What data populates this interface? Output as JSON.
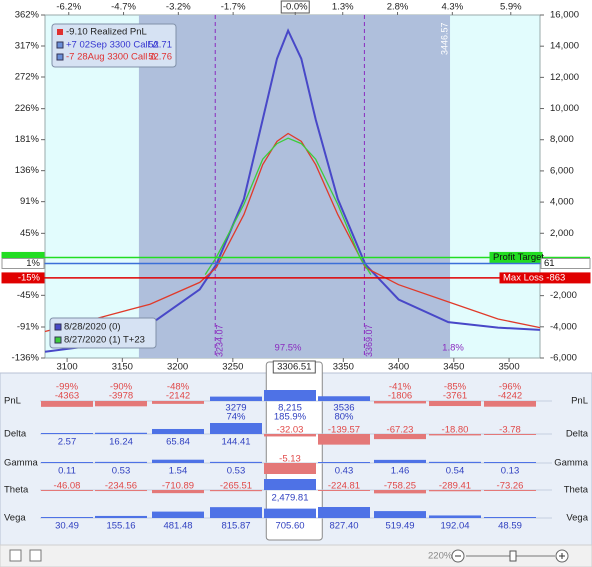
{
  "chart_data": {
    "type": "line",
    "realized": "-9.10 Realized PnL",
    "positions": [
      {
        "label": "+7 02Sep 3300 Call Δ",
        "delta": 52.71,
        "color": "#3535d0"
      },
      {
        "label": "-7 28Aug 3300 Call Δ",
        "delta": 52.76,
        "color": "#e03030"
      }
    ],
    "series": [
      {
        "name": "8/28/2020 (0)",
        "color": "#4848c8",
        "x": [
          3080,
          3130,
          3175,
          3220,
          3235,
          3260,
          3277,
          3290,
          3300,
          3312,
          3325,
          3345,
          3370,
          3400,
          3445,
          3490,
          3528
        ],
        "values": [
          -5600,
          -5150,
          -3850,
          -1600,
          0,
          4200,
          9300,
          13200,
          15000,
          13200,
          9300,
          4200,
          0,
          -2250,
          -3700,
          -4050,
          -4200
        ]
      },
      {
        "color": "#e03a2a",
        "x": [
          3080,
          3130,
          3175,
          3220,
          3235,
          3260,
          3277,
          3290,
          3300,
          3312,
          3325,
          3345,
          3370,
          3400,
          3445,
          3490,
          3528
        ],
        "values": [
          -4300,
          -3400,
          -2550,
          -1150,
          -200,
          3200,
          6400,
          7900,
          8400,
          7900,
          6400,
          3200,
          -200,
          -1300,
          -2400,
          -3500,
          -4050
        ]
      },
      {
        "name": "8/27/2020 (1) T+23",
        "color": "#3ccc3c",
        "x": [
          3225,
          3235,
          3260,
          3277,
          3290,
          3300,
          3312,
          3325,
          3345,
          3365,
          3375
        ],
        "values": [
          -650,
          450,
          3850,
          6750,
          7750,
          8100,
          7750,
          6750,
          3850,
          450,
          -650
        ]
      }
    ],
    "xlim": [
      3080,
      3528
    ],
    "xticks": [
      3100,
      3150,
      3200,
      3250,
      3350,
      3400,
      3450,
      3500
    ],
    "x2lim": [
      -6.85,
      6.7
    ],
    "x2ticks": [
      {
        "value": -6.2,
        "label": "-6.2%"
      },
      {
        "value": -4.7,
        "label": "-4.7%"
      },
      {
        "value": -3.2,
        "label": "-3.2%"
      },
      {
        "value": -1.7,
        "label": "-1.7%"
      },
      {
        "value": 0,
        "label": "-0.0%"
      },
      {
        "value": 1.3,
        "label": "1.3%"
      },
      {
        "value": 2.8,
        "label": "2.8%"
      },
      {
        "value": 4.3,
        "label": "4.3%"
      },
      {
        "value": 5.9,
        "label": "5.9%"
      }
    ],
    "ylim": [
      -6000,
      16000
    ],
    "yticks": [
      {
        "value": 16000,
        "label": "16,000"
      },
      {
        "value": 14000,
        "label": "14,000"
      },
      {
        "value": 12000,
        "label": "12,000"
      },
      {
        "value": 10000,
        "label": "10,000"
      },
      {
        "value": 8000,
        "label": "8,000"
      },
      {
        "value": 6000,
        "label": "6,000"
      },
      {
        "value": 4000,
        "label": "4,000"
      },
      {
        "value": 2000,
        "label": "2,000"
      },
      {
        "value": -2000,
        "label": "-2,000"
      },
      {
        "value": -4000,
        "label": "-4,000"
      },
      {
        "value": -6000,
        "label": "-6,000"
      }
    ],
    "y2lim": [
      -136,
      362
    ],
    "y2ticks": [
      {
        "value": 362,
        "label": "362%"
      },
      {
        "value": 317,
        "label": "317%"
      },
      {
        "value": 272,
        "label": "272%"
      },
      {
        "value": 226,
        "label": "226%"
      },
      {
        "value": 181,
        "label": "181%"
      },
      {
        "value": 136,
        "label": "136%"
      },
      {
        "value": 91,
        "label": "91%"
      },
      {
        "value": 45,
        "label": "45%"
      },
      {
        "value": -45,
        "label": "-45%"
      },
      {
        "value": -91,
        "label": "-91%"
      },
      {
        "value": -136,
        "label": "-136%"
      }
    ],
    "current_price": 3306.51,
    "breakevens": [
      3234.07,
      3369.07
    ],
    "shaded_range": [
      3165,
      3446.57
    ],
    "probabilities": [
      "97.5%",
      "1.8%"
    ],
    "levels": [
      {
        "label": "Profit Target",
        "value": 450,
        "color": "#22dd22"
      },
      {
        "label": "61",
        "value": 61,
        "color": "#3b6fd8",
        "left_label": "1%"
      },
      {
        "label": "Max Loss -863",
        "value": -863,
        "color": "#e00000",
        "left_label": "-15%"
      }
    ]
  },
  "greeks": {
    "row_labels": [
      "PnL",
      "Delta",
      "Gamma",
      "Theta",
      "Vega"
    ],
    "rows": [
      [
        [
          "-99%",
          "-4363"
        ],
        [
          "-90%",
          "-3978"
        ],
        [
          "-48%",
          "-2142"
        ],
        [
          "3279",
          "74%"
        ],
        [
          "8,215",
          "185.9%"
        ],
        [
          "3536",
          "80%"
        ],
        [
          "-41%",
          "-1806"
        ],
        [
          "-85%",
          "-3761"
        ],
        [
          "-96%",
          "-4242"
        ]
      ],
      [
        "2.57",
        "16.24",
        "65.84",
        "144.41",
        "-32.03",
        "-139.57",
        "-67.23",
        "-18.80",
        "-3.78"
      ],
      [
        "0.11",
        "0.53",
        "1.54",
        "0.53",
        "-5.13",
        "0.43",
        "1.46",
        "0.54",
        "0.13"
      ],
      [
        "-46.08",
        "-234.56",
        "-710.89",
        "-265.51",
        "2,479.81",
        "-224.81",
        "-758.25",
        "-289.41",
        "-73.26"
      ],
      [
        "30.49",
        "155.16",
        "481.48",
        "815.87",
        "705.60",
        "827.40",
        "519.49",
        "192.04",
        "48.59"
      ]
    ]
  },
  "status_bar": {
    "zoom": "220%"
  }
}
